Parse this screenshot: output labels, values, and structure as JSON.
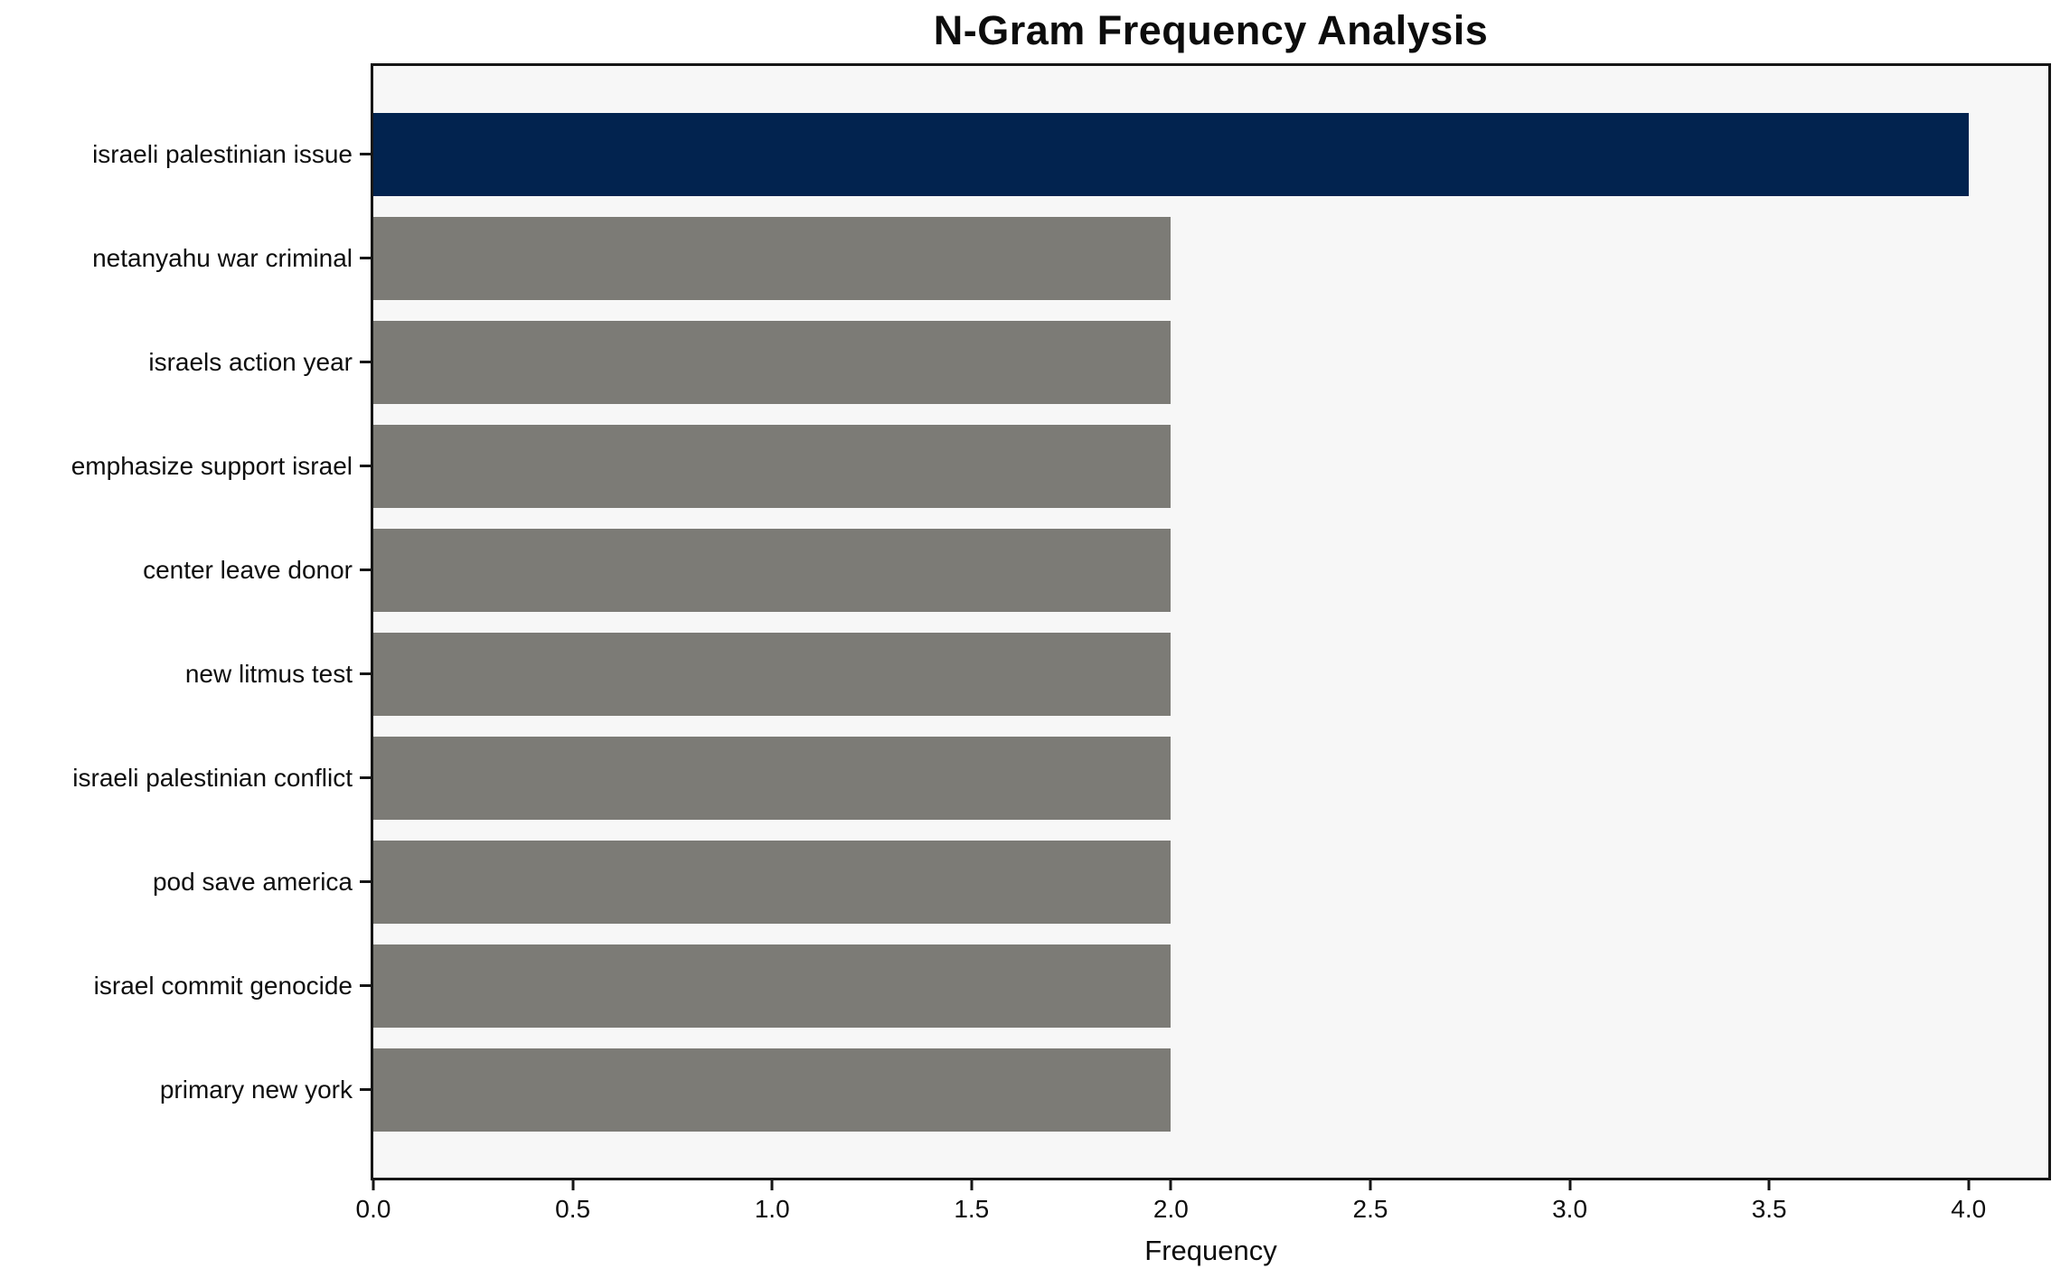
{
  "figure": {
    "background_color": "#ffffff",
    "plot_background_color": "#f7f7f7",
    "spine_color": "#161616",
    "text_color": "#0e0e0e"
  },
  "chart_data": {
    "type": "bar",
    "orientation": "horizontal",
    "title": "N-Gram Frequency Analysis",
    "xlabel": "Frequency",
    "ylabel": "",
    "categories": [
      "israeli palestinian issue",
      "netanyahu war criminal",
      "israels action year",
      "emphasize support israel",
      "center leave donor",
      "new litmus test",
      "israeli palestinian conflict",
      "pod save america",
      "israel commit genocide",
      "primary new york"
    ],
    "values": [
      4,
      2,
      2,
      2,
      2,
      2,
      2,
      2,
      2,
      2
    ],
    "bar_colors": [
      "#02234f",
      "#7c7b76",
      "#7c7b76",
      "#7c7b76",
      "#7c7b76",
      "#7c7b76",
      "#7c7b76",
      "#7c7b76",
      "#7c7b76",
      "#7c7b76"
    ],
    "highlight_color": "#02234f",
    "default_bar_color": "#7c7b76",
    "xlim": [
      0,
      4.2
    ],
    "xticks": [
      0.0,
      0.5,
      1.0,
      1.5,
      2.0,
      2.5,
      3.0,
      3.5,
      4.0
    ],
    "xtick_labels": [
      "0.0",
      "0.5",
      "1.0",
      "1.5",
      "2.0",
      "2.5",
      "3.0",
      "3.5",
      "4.0"
    ],
    "grid": false,
    "legend": null
  }
}
